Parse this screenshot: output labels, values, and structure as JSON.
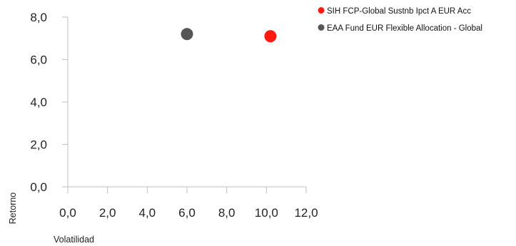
{
  "chart_data": {
    "type": "scatter",
    "xlabel": "Volatilidad",
    "ylabel": "Retorno",
    "xlim": [
      0,
      12
    ],
    "ylim": [
      0,
      8
    ],
    "x_ticks": [
      "0,0",
      "2,0",
      "4,0",
      "6,0",
      "8,0",
      "10,0",
      "12,0"
    ],
    "y_ticks": [
      "0,0",
      "2,0",
      "4,0",
      "6,0",
      "8,0"
    ],
    "grid": false,
    "legend_position": "top-right",
    "series": [
      {
        "name": "SIH FCP-Global Sustnb Ipct A EUR Acc",
        "color": "#ff1a0d",
        "points": [
          {
            "x": 10.2,
            "y": 7.1
          }
        ]
      },
      {
        "name": "EAA Fund EUR Flexible Allocation - Global",
        "color": "#555555",
        "points": [
          {
            "x": 6.0,
            "y": 7.2
          }
        ]
      }
    ]
  }
}
